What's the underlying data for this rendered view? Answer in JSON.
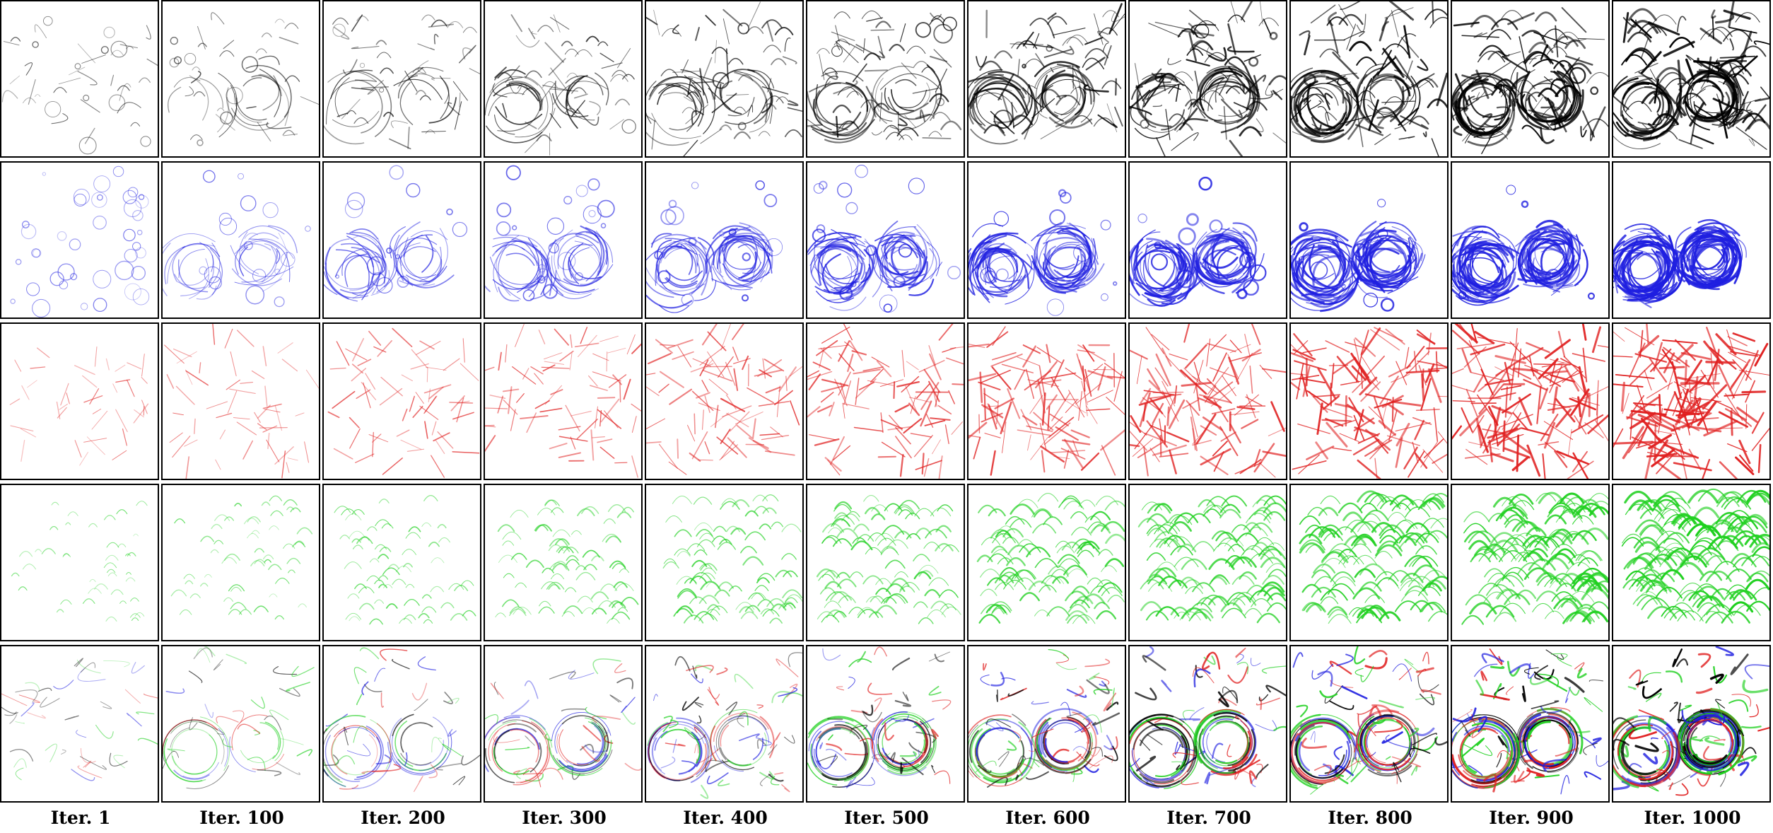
{
  "figure": {
    "iteration_labels": [
      "Iter. 1",
      "Iter. 100",
      "Iter. 200",
      "Iter. 300",
      "Iter. 400",
      "Iter. 500",
      "Iter. 600",
      "Iter. 700",
      "Iter. 800",
      "Iter. 900",
      "Iter. 1000"
    ],
    "row_colors": [
      "#000000",
      "#1f1fe0",
      "#e02020",
      "#1fd01f",
      "multi"
    ],
    "row_stroke_types": [
      "mixed-strokes",
      "circles-and-curves",
      "straight-lines",
      "arcs",
      "combined"
    ],
    "multi_palette": [
      "#1f1fe0",
      "#1fd01f",
      "#e02020",
      "#000000"
    ],
    "subject": "motorcycle sketch"
  }
}
